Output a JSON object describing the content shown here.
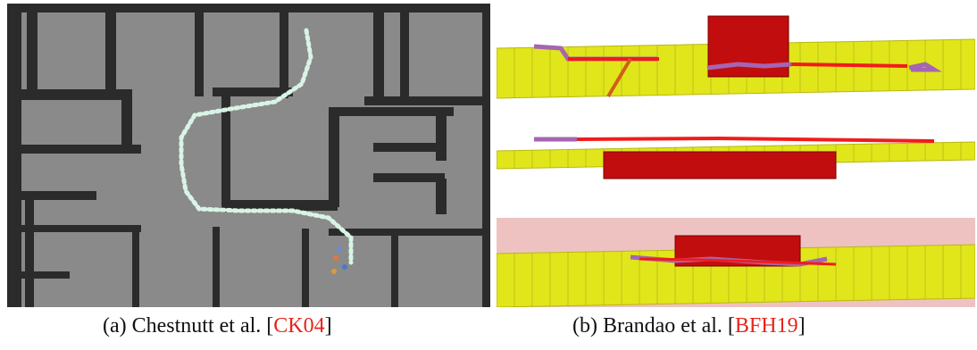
{
  "captions": {
    "a": {
      "label": "(a) Chestnutt et al. [",
      "cite": "CK04",
      "close": "]"
    },
    "b": {
      "label": "(b) Brandao et al. [",
      "cite": "BFH19",
      "close": "]"
    }
  },
  "colors": {
    "floor": "#8a8a8a",
    "wall": "#2b2b2b",
    "cite": "#e8241a",
    "terrain": "#e0e61a",
    "block": "#c10d0d",
    "path_red": "#f21b1b",
    "path_purple": "#a565b2"
  }
}
